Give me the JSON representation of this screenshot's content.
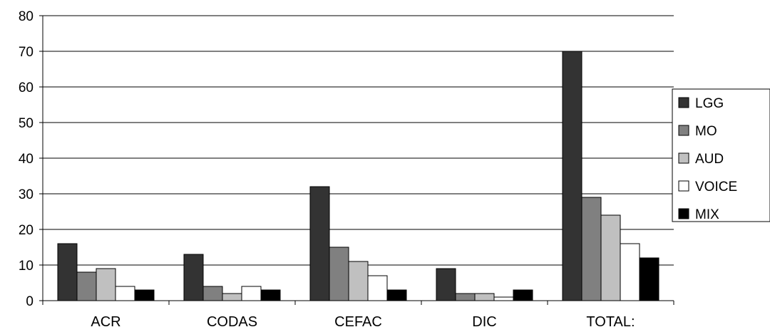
{
  "chart_data": {
    "type": "bar",
    "title": "",
    "xlabel": "",
    "ylabel": "",
    "categories": [
      "ACR",
      "CODAS",
      "CEFAC",
      "DIC",
      "TOTAL:"
    ],
    "ylim": [
      0,
      80
    ],
    "yticks": [
      0,
      10,
      20,
      30,
      40,
      50,
      60,
      70,
      80
    ],
    "grid": true,
    "legend_position": "right",
    "series": [
      {
        "name": "LGG",
        "color": "#333333",
        "values": [
          16,
          13,
          32,
          9,
          70
        ]
      },
      {
        "name": "MO",
        "color": "#808080",
        "values": [
          8,
          4,
          15,
          2,
          29
        ]
      },
      {
        "name": "AUD",
        "color": "#c0c0c0",
        "values": [
          9,
          2,
          11,
          2,
          24
        ]
      },
      {
        "name": "VOICE",
        "color": "#ffffff",
        "values": [
          4,
          4,
          7,
          1,
          16
        ]
      },
      {
        "name": "MIX",
        "color": "#000000",
        "values": [
          3,
          3,
          3,
          3,
          12
        ]
      }
    ]
  }
}
